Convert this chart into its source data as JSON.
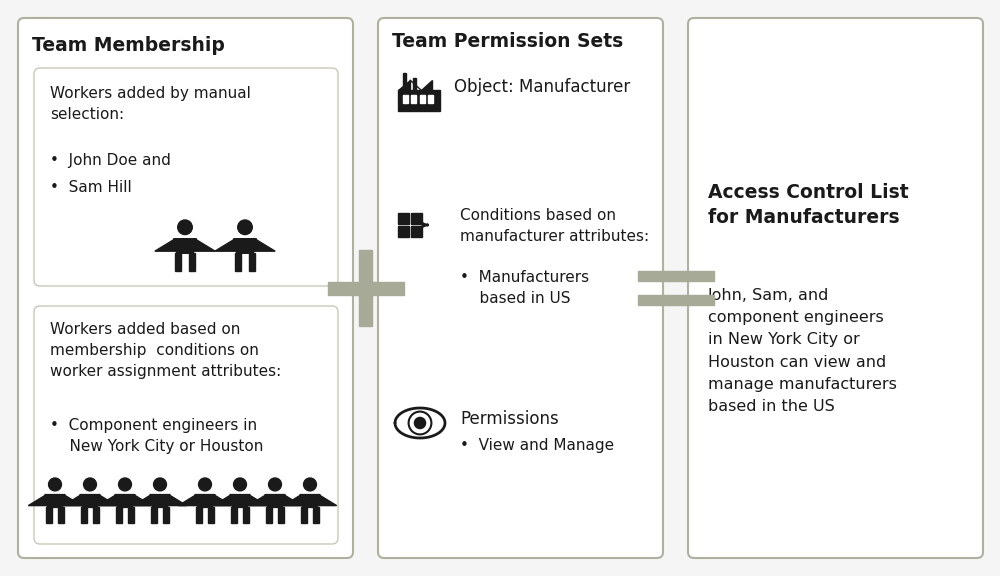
{
  "bg_color": "#f5f5f5",
  "box_face": "#ffffff",
  "border_outer": "#b0b0a0",
  "border_inner": "#c8c8b8",
  "text_color": "#1a1a1a",
  "icon_color": "#1a1a1a",
  "symbol_color": "#a8aa98",
  "title_team_membership": "Team Membership",
  "title_team_permission": "Team Permission Sets",
  "title_acl": "Access Control List\nfor Manufacturers",
  "box1_title": "Workers added by manual\nselection:",
  "box1_bullets": [
    "John Doe and",
    "Sam Hill"
  ],
  "box2_title": "Workers added based on\nmembership  conditions on\nworker assignment attributes:",
  "box2_bullets": [
    "Component engineers in\n    New York City or Houston"
  ],
  "perm_object_label": "Object: Manufacturer",
  "perm_conditions_title": "Conditions based on\nmanufacturer attributes:",
  "perm_conditions_bullets": [
    "Manufacturers\n    based in US"
  ],
  "perm_permissions_title": "Permissions",
  "perm_permissions_bullets": [
    "View and Manage"
  ],
  "acl_text": "John, Sam, and\ncomponent engineers\nin New York City or\nHouston can view and\nmanage manufacturers\nbased in the US",
  "figsize": [
    10.0,
    5.76
  ],
  "dpi": 100
}
